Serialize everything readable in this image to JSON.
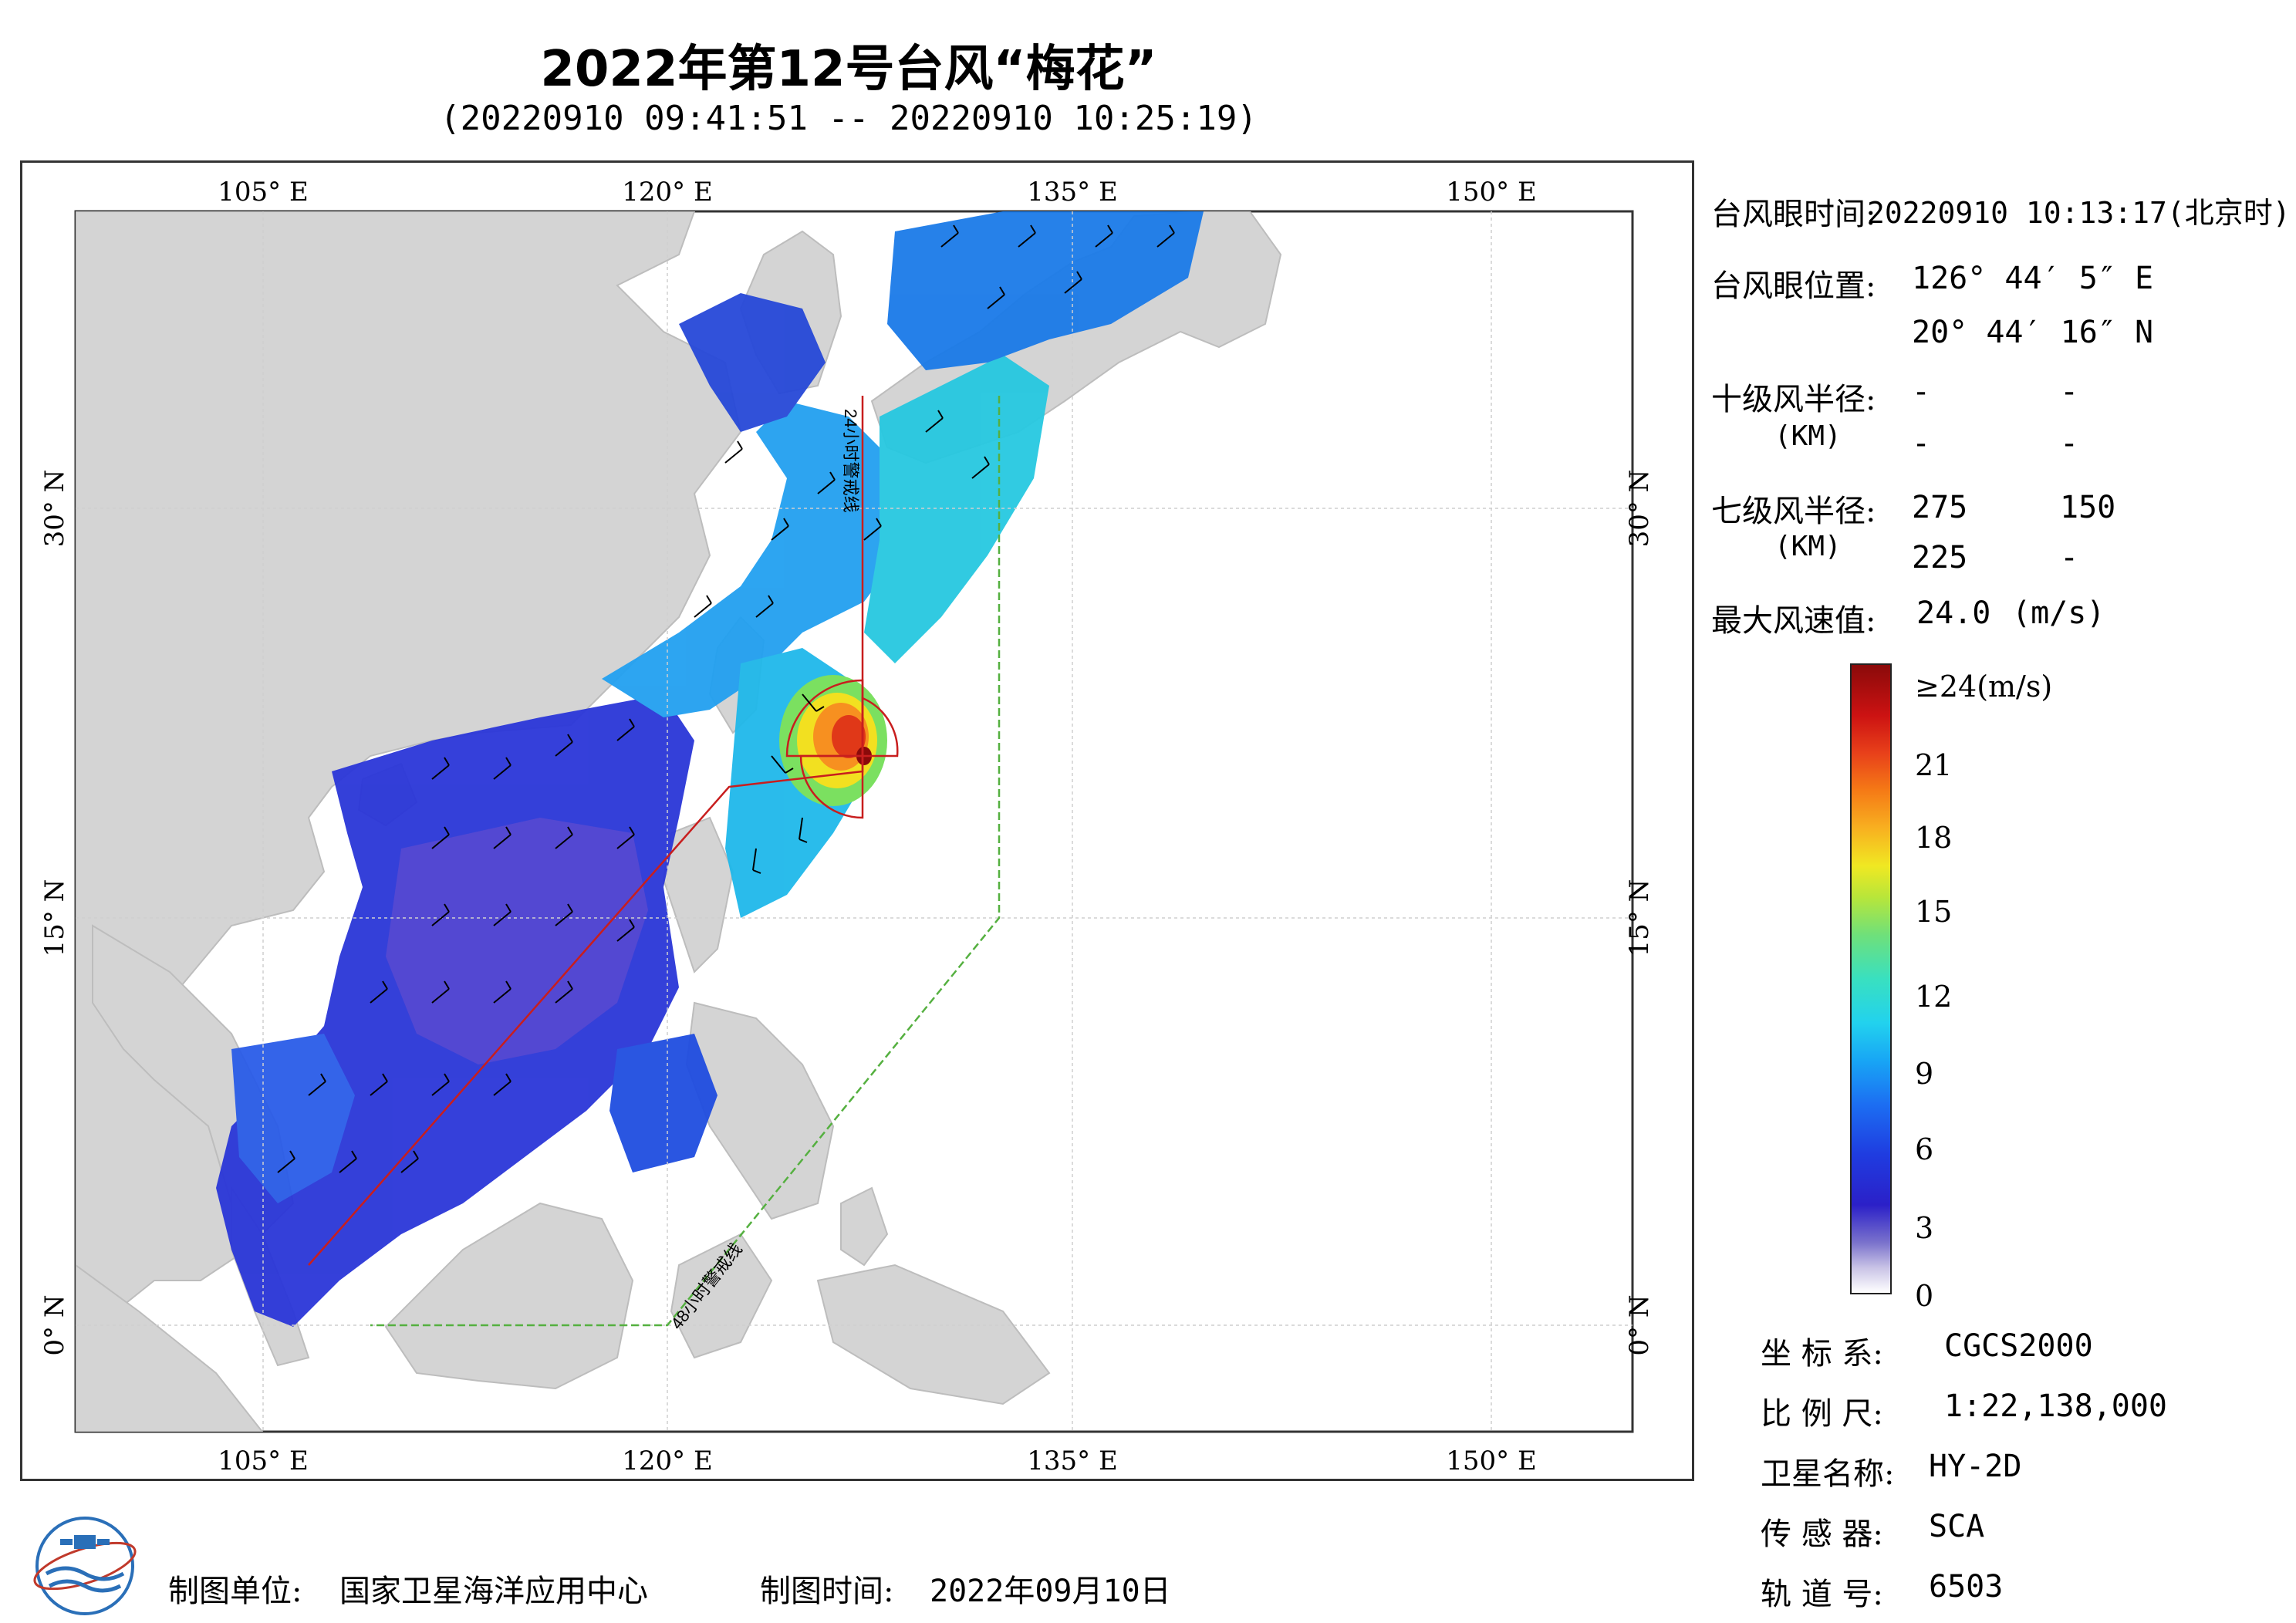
{
  "title": "2022年第12号台风“梅花”",
  "subtitle": "(20220910 09:41:51 -- 20220910 10:25:19)",
  "map": {
    "lon_labels": [
      "105° E",
      "120° E",
      "135° E",
      "150° E"
    ],
    "lat_labels": [
      "30° N",
      "15° N",
      "0° N"
    ],
    "warning_24h": "24小时警戒线",
    "warning_48h": "48小时警戒线",
    "colors": {
      "land": "#d4d4d4",
      "ocean": "#ffffff",
      "warning_24h": "#c81e1e",
      "warning_48h": "#55b040",
      "wind_barb": "#000000"
    }
  },
  "info": {
    "eye_time_label": "台风眼时间:",
    "eye_time_value": "20220910 10:13:17(北京时)",
    "eye_pos_label": "台风眼位置:",
    "eye_lon": "126° 44′ 5″ E",
    "eye_lat": "20° 44′ 16″ N",
    "r10_label": "十级风半径:",
    "r10_unit": "(KM)",
    "r10_values": [
      "-",
      "-",
      "-",
      "-"
    ],
    "r7_label": "七级风半径:",
    "r7_unit": "(KM)",
    "r7_values": [
      "275",
      "150",
      "225",
      "-"
    ],
    "max_wind_label": "最大风速值:",
    "max_wind_value": "24.0",
    "max_wind_unit": "(m/s)"
  },
  "colorbar": {
    "top_label": "≥24(m/s)",
    "ticks": [
      "21",
      "18",
      "15",
      "12",
      "9",
      "6",
      "3",
      "0"
    ]
  },
  "meta": {
    "crs_label": "坐 标 系:",
    "crs_value": "CGCS2000",
    "scale_label": "比 例 尺:",
    "scale_value": "1:22,138,000",
    "satellite_label": "卫星名称:",
    "satellite_value": "HY-2D",
    "sensor_label": "传 感 器:",
    "sensor_value": "SCA",
    "orbit_label": "轨 道 号:",
    "orbit_value": "6503"
  },
  "footer": {
    "org_label": "制图单位:",
    "org_value": "国家卫星海洋应用中心",
    "date_label": "制图时间:",
    "date_value": "2022年09月10日"
  }
}
